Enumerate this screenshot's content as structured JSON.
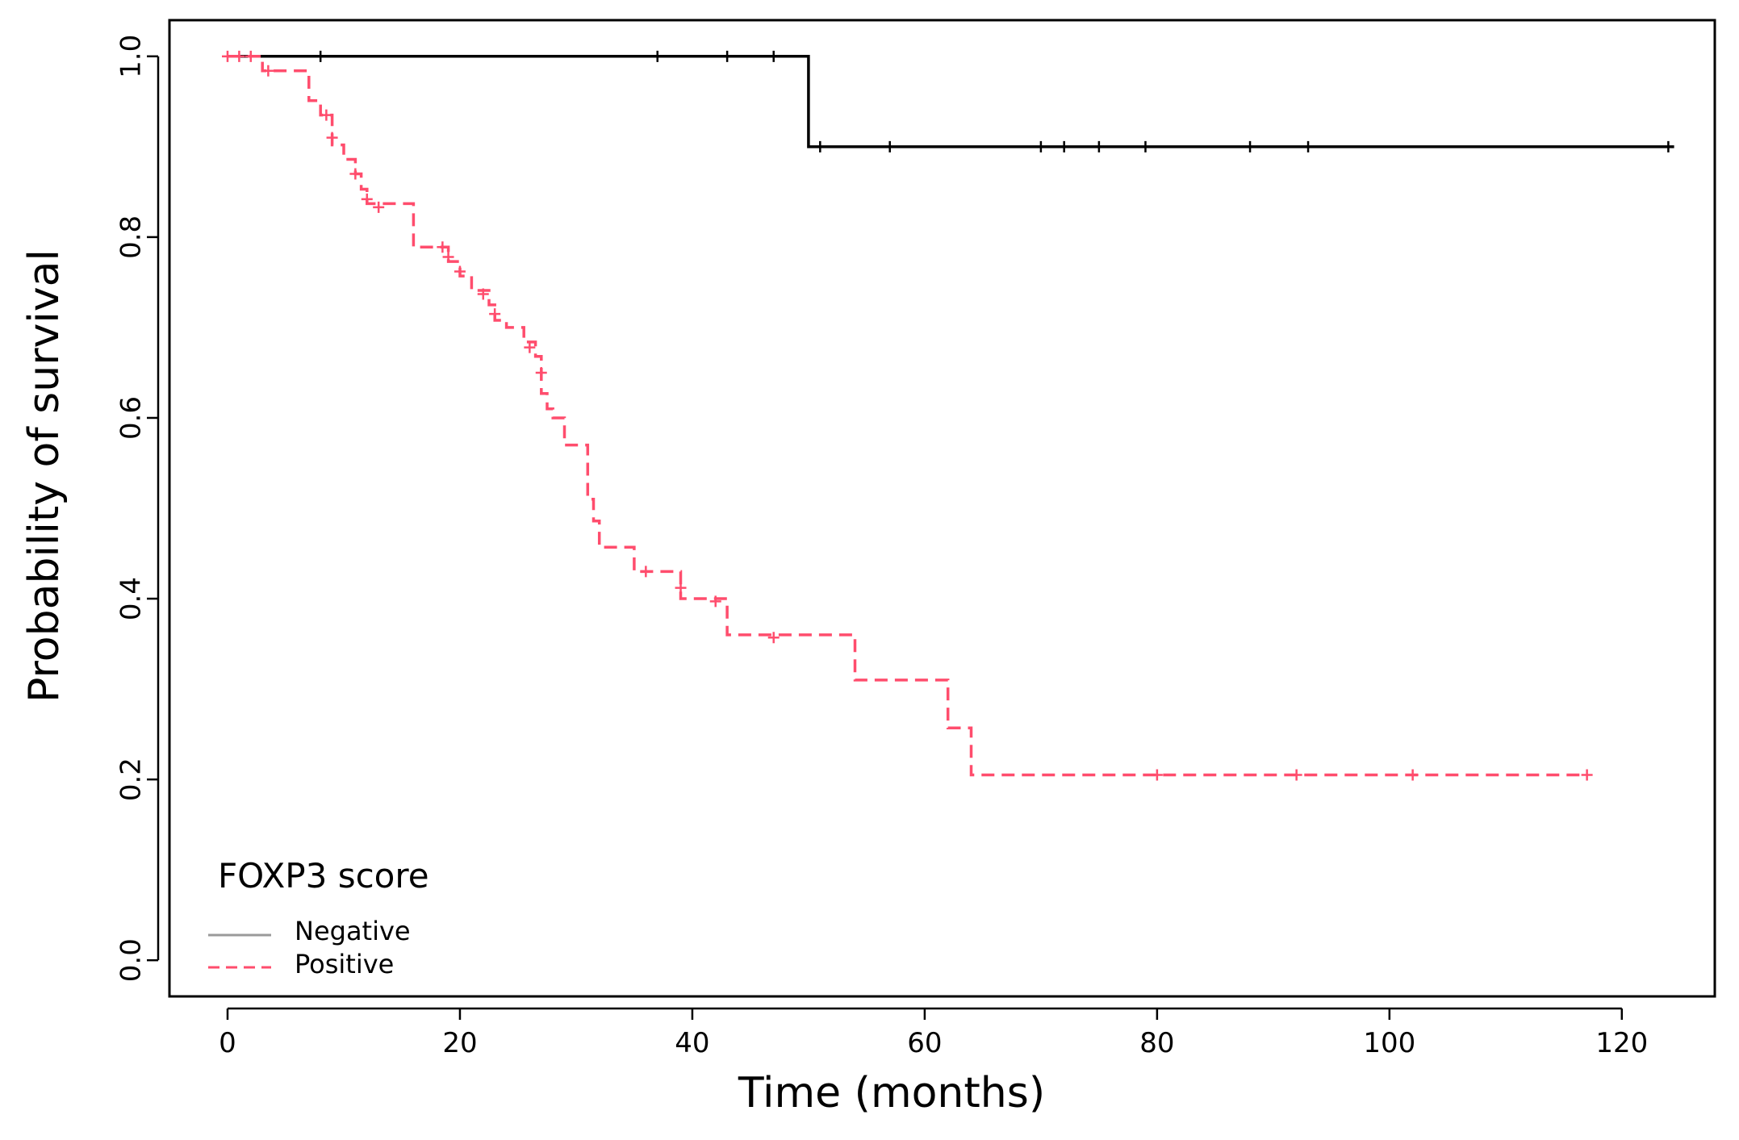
{
  "chart_data": {
    "type": "line",
    "title": "",
    "xlabel": "Time (months)",
    "ylabel": "Probability of survival",
    "xlim": [
      -5,
      128
    ],
    "ylim": [
      -0.04,
      1.04
    ],
    "xticks": [
      0,
      20,
      40,
      60,
      80,
      100,
      120
    ],
    "yticks": [
      0.0,
      0.2,
      0.4,
      0.6,
      0.8,
      1.0
    ],
    "xtick_labels": [
      "0",
      "20",
      "40",
      "60",
      "80",
      "100",
      "120"
    ],
    "ytick_labels": [
      "0.0",
      "0.2",
      "0.4",
      "0.6",
      "0.8",
      "1.0"
    ],
    "grid": false,
    "step": true,
    "legend": {
      "title": "FOXP3 score",
      "placement": "bottom-left",
      "entries": [
        "Negative",
        "Positive"
      ]
    },
    "series": [
      {
        "name": "Negative",
        "color": "#000000",
        "style": "solid",
        "points": [
          [
            0,
            1.0
          ],
          [
            50,
            0.9
          ],
          [
            124.5,
            0.9
          ]
        ],
        "censored": [
          [
            8,
            1.0
          ],
          [
            37,
            1.0
          ],
          [
            43,
            1.0
          ],
          [
            47,
            1.0
          ],
          [
            51,
            0.9
          ],
          [
            57,
            0.9
          ],
          [
            70,
            0.9
          ],
          [
            72,
            0.9
          ],
          [
            75,
            0.9
          ],
          [
            79,
            0.9
          ],
          [
            88,
            0.9
          ],
          [
            93,
            0.9
          ],
          [
            124,
            0.9
          ]
        ]
      },
      {
        "name": "Positive",
        "color": "#ff4d6d",
        "style": "dashed",
        "points": [
          [
            0,
            1.0
          ],
          [
            3,
            0.984
          ],
          [
            7,
            0.951
          ],
          [
            8,
            0.935
          ],
          [
            9,
            0.902
          ],
          [
            10,
            0.886
          ],
          [
            11,
            0.87
          ],
          [
            11.5,
            0.853
          ],
          [
            12,
            0.837
          ],
          [
            16,
            0.789
          ],
          [
            19,
            0.773
          ],
          [
            20,
            0.757
          ],
          [
            21,
            0.741
          ],
          [
            22.5,
            0.725
          ],
          [
            23,
            0.708
          ],
          [
            24,
            0.7
          ],
          [
            25.5,
            0.684
          ],
          [
            26.5,
            0.668
          ],
          [
            27,
            0.627
          ],
          [
            27.5,
            0.61
          ],
          [
            28,
            0.6
          ],
          [
            29,
            0.57
          ],
          [
            31,
            0.51
          ],
          [
            31.5,
            0.486
          ],
          [
            32,
            0.457
          ],
          [
            35,
            0.43
          ],
          [
            39,
            0.4
          ],
          [
            43,
            0.36
          ],
          [
            54,
            0.31
          ],
          [
            62,
            0.257
          ],
          [
            64,
            0.205
          ],
          [
            117,
            0.205
          ]
        ],
        "censored": [
          [
            0,
            1.0
          ],
          [
            1,
            1.0
          ],
          [
            2,
            1.0
          ],
          [
            3.5,
            0.984
          ],
          [
            8.5,
            0.935
          ],
          [
            9,
            0.91
          ],
          [
            11,
            0.87
          ],
          [
            12,
            0.842
          ],
          [
            13,
            0.833
          ],
          [
            18.5,
            0.789
          ],
          [
            19,
            0.778
          ],
          [
            20,
            0.762
          ],
          [
            22,
            0.737
          ],
          [
            23,
            0.715
          ],
          [
            26,
            0.678
          ],
          [
            27,
            0.65
          ],
          [
            36,
            0.43
          ],
          [
            39,
            0.412
          ],
          [
            42,
            0.397
          ],
          [
            47,
            0.357
          ],
          [
            80,
            0.205
          ],
          [
            92,
            0.205
          ],
          [
            102,
            0.205
          ],
          [
            117,
            0.205
          ]
        ]
      }
    ]
  }
}
